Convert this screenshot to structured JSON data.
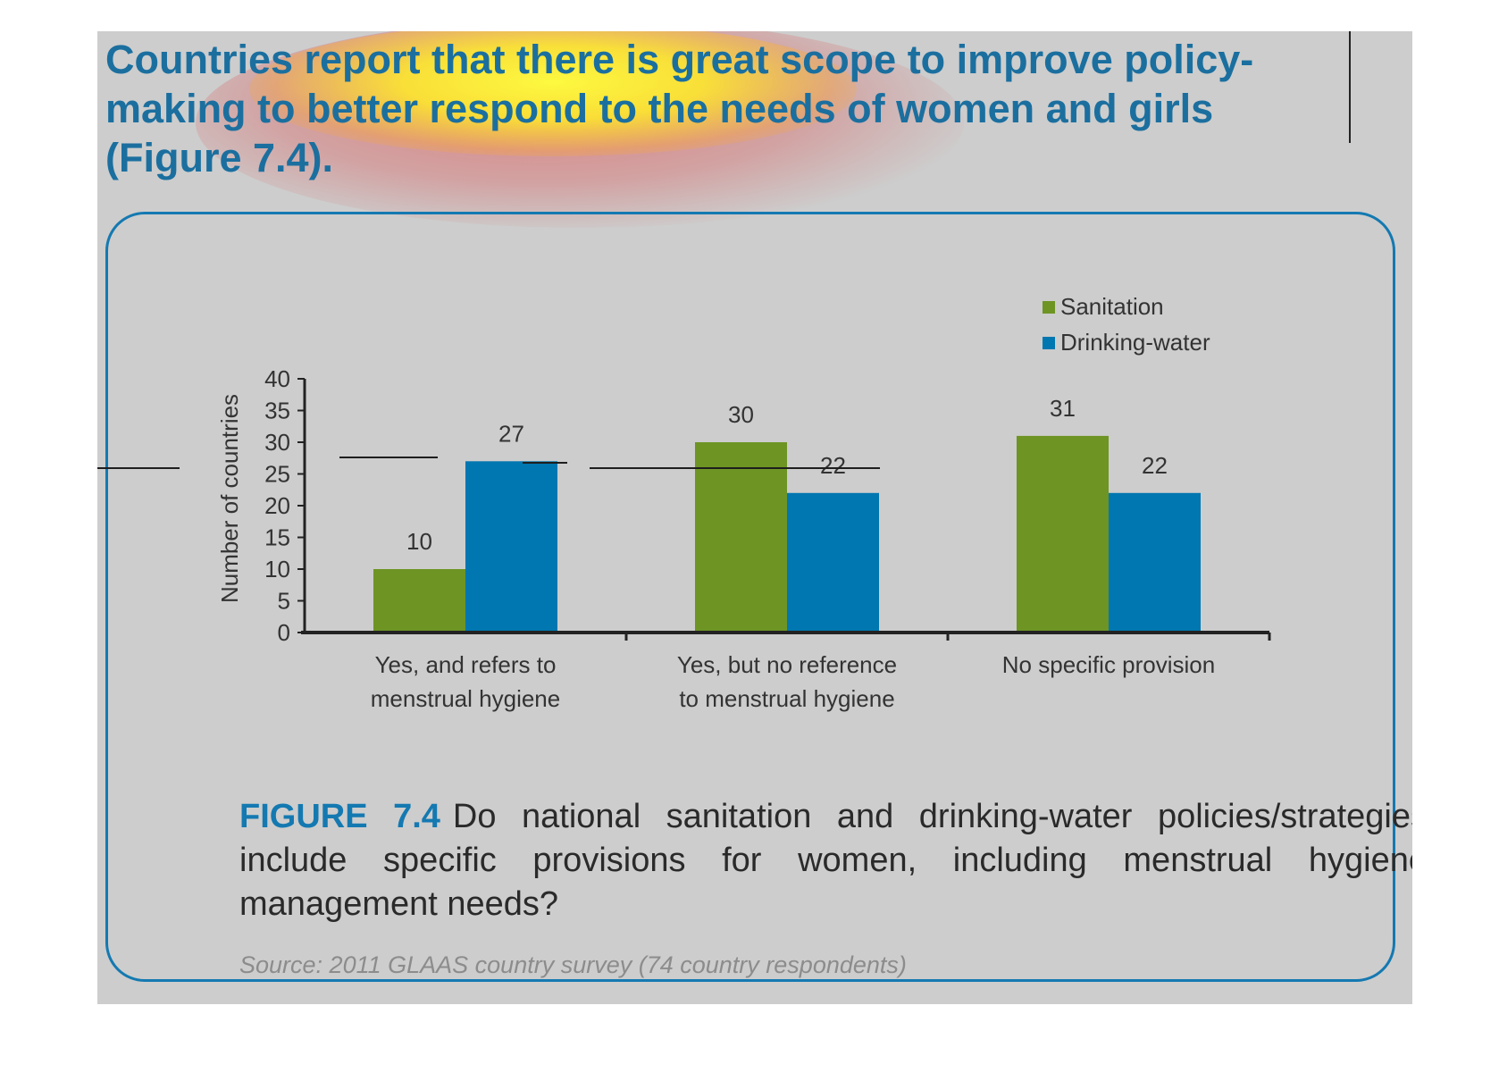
{
  "headline": {
    "text": "Countries report that there is great scope to improve policy-making to better respond to the needs of women and girls (Figure 7.4)."
  },
  "figure": {
    "label": "FIGURE 7.4",
    "caption": "Do national sanitation and drinking-water policies/strategies include specific provisions for women, including menstrual hygiene management needs?",
    "source": "Source: 2011 GLAAS country survey (74 country respondents)"
  },
  "colors": {
    "sanitation": "#6e9424",
    "drinking_water": "#0077b0",
    "accent": "#1479b1",
    "headline": "#1b6f9f"
  },
  "chart_data": {
    "type": "bar",
    "title": "",
    "ylabel": "Number of countries",
    "xlabel": "",
    "ylim": [
      0,
      40
    ],
    "yticks": [
      0,
      5,
      10,
      15,
      20,
      25,
      30,
      35,
      40
    ],
    "categories": [
      [
        "Yes, and refers to",
        "menstrual hygiene"
      ],
      [
        "Yes, but no reference",
        "to menstrual hygiene"
      ],
      [
        "No specific provision"
      ]
    ],
    "series": [
      {
        "name": "Sanitation",
        "values": [
          10,
          30,
          31
        ]
      },
      {
        "name": "Drinking-water",
        "values": [
          27,
          22,
          22
        ]
      }
    ],
    "legend_position": "top-right",
    "grid": false,
    "data_labels": true
  }
}
